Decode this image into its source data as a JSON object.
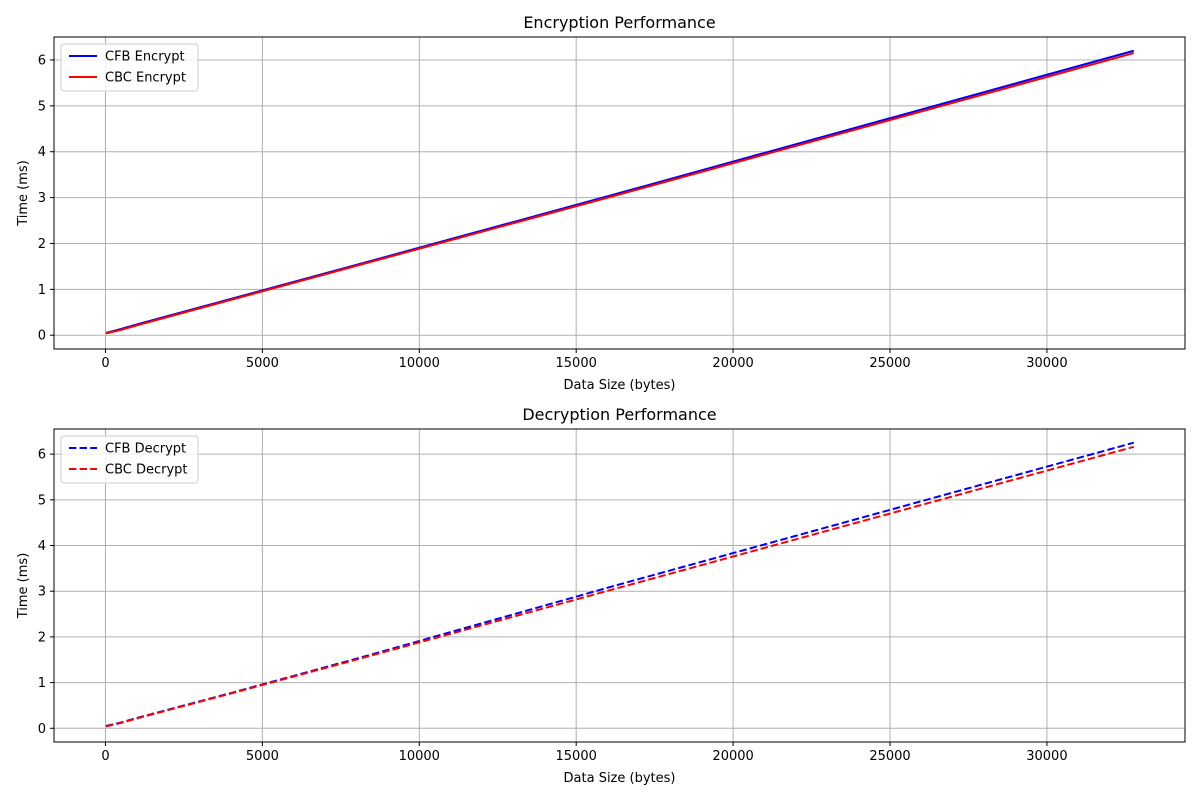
{
  "chart_data": [
    {
      "type": "line",
      "title": "Encryption Performance",
      "xlabel": "Data Size (bytes)",
      "ylabel": "Time (ms)",
      "xlim": [
        -1640,
        34400
      ],
      "ylim": [
        -0.3,
        6.5
      ],
      "xticks": [
        0,
        5000,
        10000,
        15000,
        20000,
        25000,
        30000
      ],
      "yticks": [
        0,
        1,
        2,
        3,
        4,
        5,
        6
      ],
      "xtick_labels": [
        "0",
        "5000",
        "10000",
        "15000",
        "20000",
        "25000",
        "30000"
      ],
      "ytick_labels": [
        "0",
        "1",
        "2",
        "3",
        "4",
        "5",
        "6"
      ],
      "grid": true,
      "legend_position": "upper-left",
      "series": [
        {
          "name": "CFB Encrypt",
          "color": "#0000ff",
          "linestyle": "solid",
          "x": [
            16,
            512,
            1024,
            4096,
            8192,
            16384,
            32768
          ],
          "y": [
            0.05,
            0.14,
            0.24,
            0.81,
            1.57,
            3.1,
            6.2
          ]
        },
        {
          "name": "CBC Encrypt",
          "color": "#ff0000",
          "linestyle": "solid",
          "x": [
            16,
            512,
            1024,
            4096,
            8192,
            16384,
            32768
          ],
          "y": [
            0.04,
            0.12,
            0.22,
            0.79,
            1.55,
            3.07,
            6.15
          ]
        }
      ]
    },
    {
      "type": "line",
      "title": "Decryption Performance",
      "xlabel": "Data Size (bytes)",
      "ylabel": "Time (ms)",
      "xlim": [
        -1640,
        34400
      ],
      "ylim": [
        -0.3,
        6.55
      ],
      "xticks": [
        0,
        5000,
        10000,
        15000,
        20000,
        25000,
        30000
      ],
      "yticks": [
        0,
        1,
        2,
        3,
        4,
        5,
        6
      ],
      "xtick_labels": [
        "0",
        "5000",
        "10000",
        "15000",
        "20000",
        "25000",
        "30000"
      ],
      "ytick_labels": [
        "0",
        "1",
        "2",
        "3",
        "4",
        "5",
        "6"
      ],
      "grid": true,
      "legend_position": "upper-left",
      "series": [
        {
          "name": "CFB Decrypt",
          "color": "#0000ff",
          "linestyle": "dashed",
          "x": [
            16,
            512,
            1024,
            4096,
            8192,
            16384,
            32768
          ],
          "y": [
            0.05,
            0.13,
            0.23,
            0.79,
            1.56,
            3.15,
            6.25
          ]
        },
        {
          "name": "CBC Decrypt",
          "color": "#ff0000",
          "linestyle": "dashed",
          "x": [
            16,
            512,
            1024,
            4096,
            8192,
            16384,
            32768
          ],
          "y": [
            0.04,
            0.12,
            0.22,
            0.78,
            1.54,
            3.08,
            6.16
          ]
        }
      ]
    }
  ]
}
